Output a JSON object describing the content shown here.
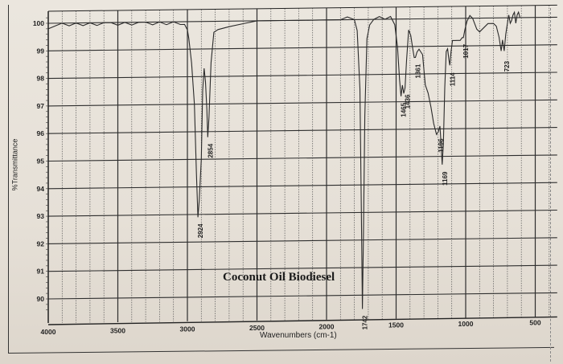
{
  "chart_data": {
    "type": "line",
    "title": "Coconut Oil Biodiesel",
    "xlabel": "Wavenumbers (cm-1)",
    "ylabel": "%Transmittance",
    "xlim": [
      4000,
      400
    ],
    "ylim": [
      89.5,
      100.5
    ],
    "x_reversed": true,
    "grid": true,
    "x_ticks": [
      4000,
      3500,
      3000,
      2500,
      2000,
      1500,
      1000,
      500
    ],
    "y_ticks": [
      90,
      91,
      92,
      93,
      94,
      95,
      96,
      97,
      98,
      99,
      100
    ],
    "peak_annotations": [
      {
        "label": "2924",
        "x": 2924,
        "y": 92.9
      },
      {
        "label": "2854",
        "x": 2854,
        "y": 95.8
      },
      {
        "label": "1742",
        "x": 1742,
        "y": 89.5
      },
      {
        "label": "1465",
        "x": 1465,
        "y": 97.2
      },
      {
        "label": "1436",
        "x": 1436,
        "y": 97.5
      },
      {
        "label": "1361",
        "x": 1361,
        "y": 98.6
      },
      {
        "label": "1196",
        "x": 1196,
        "y": 95.9
      },
      {
        "label": "1169",
        "x": 1169,
        "y": 94.7
      },
      {
        "label": "1114",
        "x": 1114,
        "y": 98.3
      },
      {
        "label": "1017",
        "x": 1017,
        "y": 99.3
      },
      {
        "label": "723",
        "x": 723,
        "y": 98.8
      }
    ],
    "series": [
      {
        "name": "Coconut Oil Biodiesel",
        "x": [
          4000,
          3950,
          3900,
          3850,
          3800,
          3750,
          3700,
          3650,
          3600,
          3550,
          3500,
          3450,
          3400,
          3350,
          3300,
          3250,
          3200,
          3150,
          3100,
          3050,
          3020,
          3000,
          2990,
          2970,
          2950,
          2935,
          2924,
          2915,
          2900,
          2890,
          2880,
          2870,
          2860,
          2854,
          2845,
          2830,
          2810,
          2780,
          2700,
          2600,
          2500,
          2400,
          2300,
          2200,
          2100,
          2000,
          1900,
          1850,
          1800,
          1780,
          1760,
          1750,
          1742,
          1735,
          1725,
          1710,
          1690,
          1660,
          1620,
          1580,
          1540,
          1510,
          1490,
          1475,
          1465,
          1455,
          1445,
          1436,
          1425,
          1410,
          1395,
          1380,
          1370,
          1361,
          1350,
          1335,
          1310,
          1290,
          1270,
          1250,
          1230,
          1210,
          1196,
          1185,
          1175,
          1169,
          1160,
          1150,
          1140,
          1130,
          1120,
          1114,
          1105,
          1095,
          1080,
          1060,
          1040,
          1025,
          1017,
          1005,
          990,
          970,
          950,
          920,
          900,
          880,
          860,
          840,
          820,
          800,
          780,
          760,
          745,
          735,
          723,
          712,
          700,
          690,
          680,
          670,
          660,
          650,
          640,
          630,
          620,
          610
        ],
        "y": [
          99.8,
          99.9,
          100.0,
          99.9,
          100.0,
          99.9,
          100.0,
          99.9,
          100.0,
          100.0,
          99.9,
          100.0,
          99.9,
          100.0,
          100.0,
          99.9,
          100.0,
          99.9,
          100.0,
          99.9,
          99.9,
          99.7,
          99.4,
          98.5,
          97.0,
          94.5,
          92.9,
          93.5,
          95.0,
          97.5,
          98.3,
          97.8,
          96.8,
          95.8,
          96.5,
          98.5,
          99.6,
          99.7,
          99.8,
          99.9,
          100.0,
          100.0,
          100.0,
          100.0,
          100.0,
          100.0,
          100.0,
          100.1,
          100.0,
          99.6,
          97.5,
          93.0,
          89.5,
          92.0,
          96.5,
          99.3,
          99.8,
          100.0,
          100.1,
          100.0,
          100.1,
          99.8,
          99.0,
          97.8,
          97.2,
          97.6,
          97.3,
          97.5,
          98.5,
          99.6,
          99.4,
          98.9,
          98.6,
          98.6,
          98.8,
          98.9,
          98.7,
          97.6,
          97.3,
          96.8,
          96.2,
          95.8,
          95.9,
          96.1,
          95.3,
          94.7,
          95.5,
          97.5,
          98.8,
          98.9,
          98.5,
          98.3,
          98.8,
          99.2,
          99.2,
          99.2,
          99.2,
          99.3,
          99.3,
          99.6,
          99.9,
          100.1,
          100.0,
          99.6,
          99.5,
          99.6,
          99.7,
          99.8,
          99.8,
          99.8,
          99.7,
          99.3,
          98.8,
          99.2,
          98.8,
          99.4,
          99.8,
          100.1,
          99.8,
          99.9,
          100.1,
          100.2,
          99.8,
          100.1,
          100.2,
          100.0
        ]
      }
    ]
  }
}
